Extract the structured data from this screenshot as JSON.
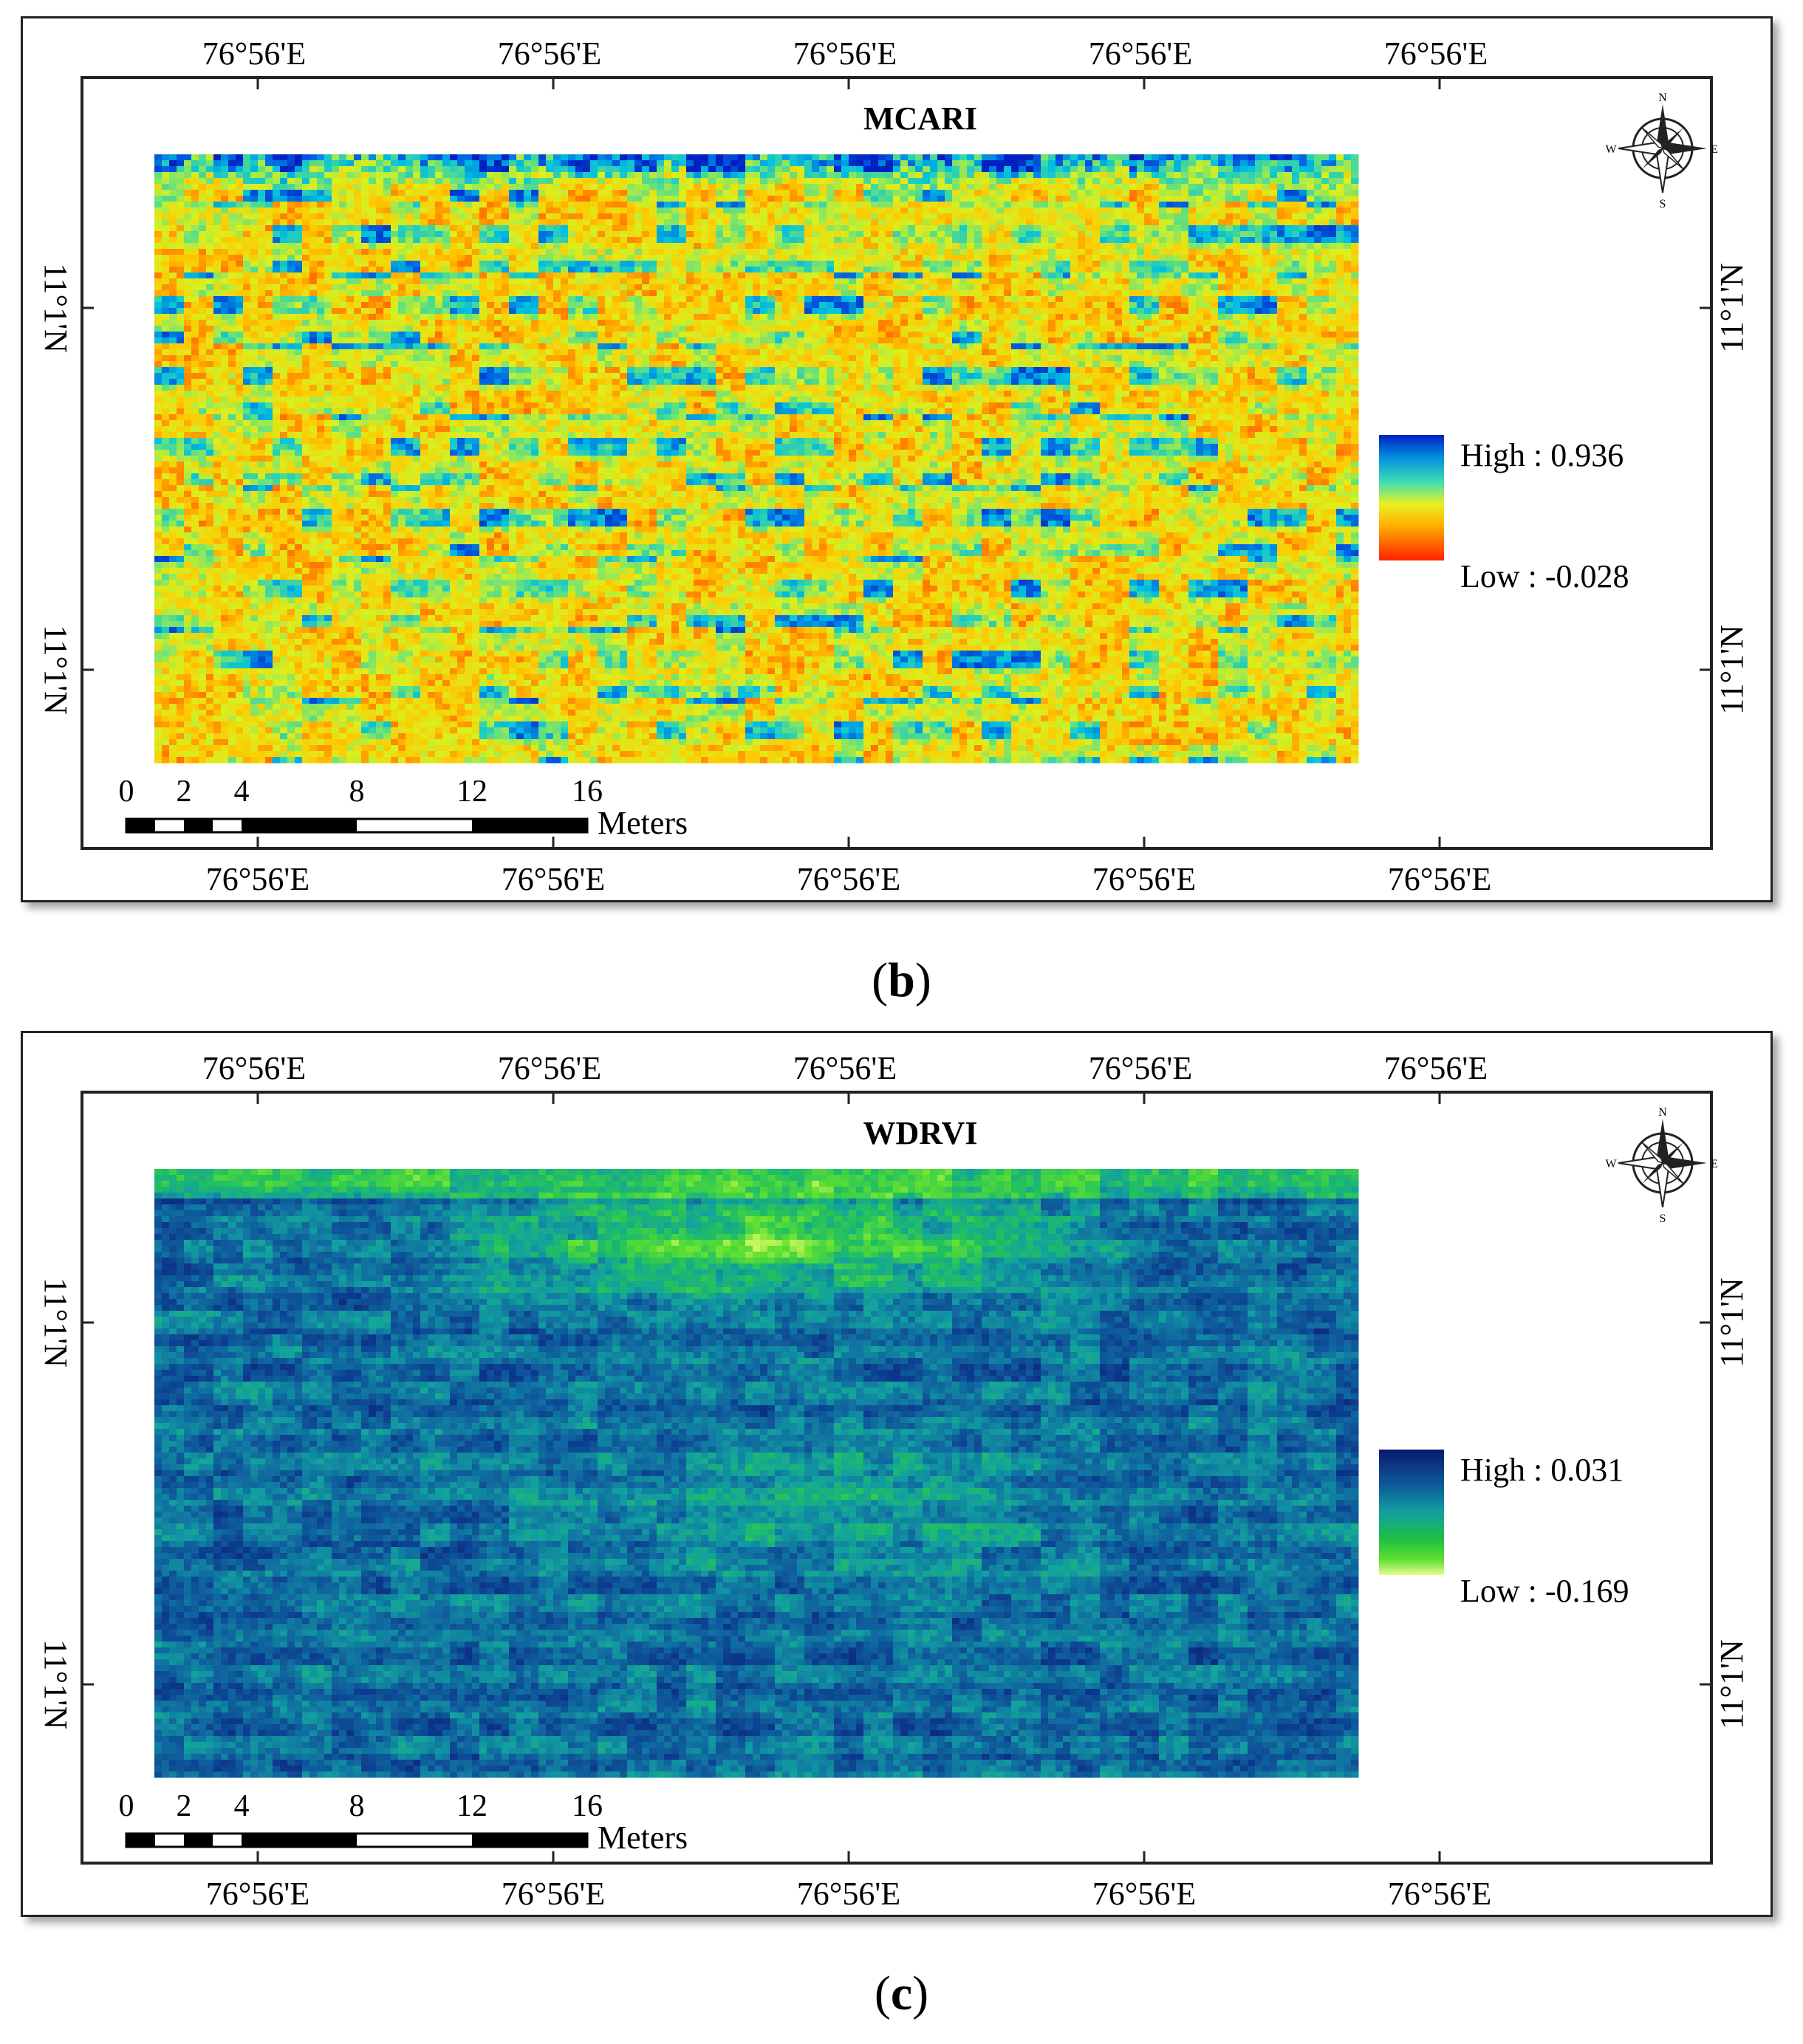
{
  "colors": {
    "mcari_ramp": [
      "#ff2a00",
      "#ff6a00",
      "#ffc800",
      "#d8f020",
      "#60e080",
      "#00c0e0",
      "#0060e0",
      "#0020c0"
    ],
    "wdrvi_ramp": [
      "#0a1a6e",
      "#0c3a8e",
      "#106aa0",
      "#12a0a0",
      "#22c060",
      "#60e030",
      "#d0f860"
    ],
    "frame": "#222222"
  },
  "panels": [
    {
      "title": "MCARI",
      "top_lon_labels": [
        "76°56'E",
        "76°56'E",
        "76°56'E",
        "76°56'E",
        "76°56'E"
      ],
      "bottom_lon_labels": [
        "76°56'E",
        "76°56'E",
        "76°56'E",
        "76°56'E",
        "76°56'E"
      ],
      "left_lat_labels": [
        "11°1'N",
        "11°1'N"
      ],
      "right_lat_labels": [
        "11°1'N",
        "11°1'N"
      ],
      "legend": {
        "high": "High : 0.936",
        "low": "Low : -0.028"
      },
      "scale": {
        "ticks": [
          "0",
          "2",
          "4",
          "8",
          "12",
          "16"
        ],
        "unit": "Meters"
      },
      "north_arrow": "compass-rose-icon",
      "caption_letter": "b"
    },
    {
      "title": "WDRVI",
      "top_lon_labels": [
        "76°56'E",
        "76°56'E",
        "76°56'E",
        "76°56'E",
        "76°56'E"
      ],
      "bottom_lon_labels": [
        "76°56'E",
        "76°56'E",
        "76°56'E",
        "76°56'E",
        "76°56'E"
      ],
      "left_lat_labels": [
        "11°1'N",
        "11°1'N"
      ],
      "right_lat_labels": [
        "11°1'N",
        "11°1'N"
      ],
      "legend": {
        "high": "High : 0.031",
        "low": "Low : -0.169"
      },
      "scale": {
        "ticks": [
          "0",
          "2",
          "4",
          "8",
          "12",
          "16"
        ],
        "unit": "Meters"
      },
      "north_arrow": "compass-rose-icon",
      "caption_letter": "c"
    }
  ],
  "compass": {
    "n": "N",
    "s": "S",
    "e": "E",
    "w": "W"
  }
}
